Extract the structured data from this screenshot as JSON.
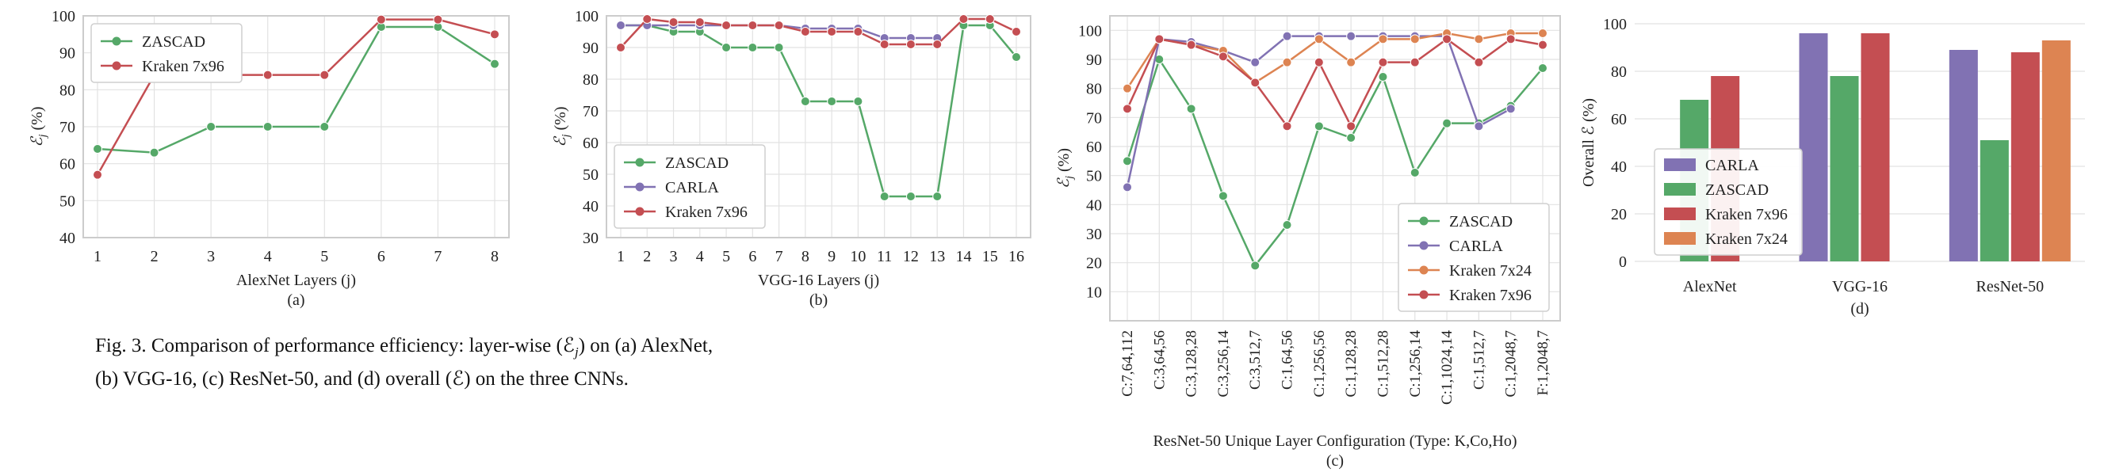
{
  "colors": {
    "zascad": "#55a868",
    "carla": "#8172b3",
    "kraken96": "#c44e52",
    "kraken24": "#dd8452",
    "grid": "#e2e2e2",
    "frame": "#cccccc"
  },
  "caption": {
    "line1": "Fig. 3.  Comparison of performance efficiency: layer-wise (ℰ",
    "line1_sub": "j",
    "line1_end": ") on (a) AlexNet,",
    "line2": "(b) VGG-16, (c) ResNet-50, and (d) overall (ℰ) on the three CNNs."
  },
  "chart_data": [
    {
      "id": "a",
      "type": "line",
      "sublabel": "(a)",
      "xlabel": "AlexNet Layers (j)",
      "ylabel": "ℰj (%)",
      "x": [
        1,
        2,
        3,
        4,
        5,
        6,
        7,
        8
      ],
      "ylim": [
        40,
        100
      ],
      "yticks": [
        40,
        50,
        60,
        70,
        80,
        90,
        100
      ],
      "grid": true,
      "legend": "top-left",
      "series": [
        {
          "name": "ZASCAD",
          "color_key": "zascad",
          "values": [
            64,
            63,
            70,
            70,
            70,
            97,
            97,
            87
          ]
        },
        {
          "name": "Kraken 7x96",
          "color_key": "kraken96",
          "values": [
            57,
            84,
            84,
            84,
            84,
            99,
            99,
            95
          ]
        }
      ]
    },
    {
      "id": "b",
      "type": "line",
      "sublabel": "(b)",
      "xlabel": "VGG-16 Layers (j)",
      "ylabel": "ℰj (%)",
      "x": [
        1,
        2,
        3,
        4,
        5,
        6,
        7,
        8,
        9,
        10,
        11,
        12,
        13,
        14,
        15,
        16
      ],
      "ylim": [
        30,
        100
      ],
      "yticks": [
        30,
        40,
        50,
        60,
        70,
        80,
        90,
        100
      ],
      "grid": true,
      "legend": "bottom-left",
      "series": [
        {
          "name": "ZASCAD",
          "color_key": "zascad",
          "values": [
            97,
            97,
            95,
            95,
            90,
            90,
            90,
            73,
            73,
            73,
            43,
            43,
            43,
            97,
            97,
            87
          ]
        },
        {
          "name": "CARLA",
          "color_key": "carla",
          "values": [
            97,
            97,
            97,
            97,
            97,
            97,
            97,
            96,
            96,
            96,
            93,
            93,
            93,
            null,
            null,
            null
          ]
        },
        {
          "name": "Kraken 7x96",
          "color_key": "kraken96",
          "values": [
            90,
            99,
            98,
            98,
            97,
            97,
            97,
            95,
            95,
            95,
            91,
            91,
            91,
            99,
            99,
            95
          ]
        }
      ]
    },
    {
      "id": "c",
      "type": "line",
      "sublabel": "(c)",
      "xlabel": "ResNet-50 Unique Layer Configuration (Type: K,Co,Ho)",
      "ylabel": "ℰj (%)",
      "categories": [
        "C:7,64,112",
        "C:3,64,56",
        "C:3,128,28",
        "C:3,256,14",
        "C:3,512,7",
        "C:1,64,56",
        "C:1,256,56",
        "C:1,128,28",
        "C:1,512,28",
        "C:1,256,14",
        "C:1,1024,14",
        "C:1,512,7",
        "C:1,2048,7",
        "F:1,2048,7"
      ],
      "ylim": [
        0,
        105
      ],
      "yticks": [
        10,
        20,
        30,
        40,
        50,
        60,
        70,
        80,
        90,
        100
      ],
      "grid": true,
      "legend": "bottom-right",
      "series": [
        {
          "name": "ZASCAD",
          "color_key": "zascad",
          "values": [
            55,
            90,
            73,
            43,
            19,
            33,
            67,
            63,
            84,
            51,
            68,
            68,
            74,
            87
          ]
        },
        {
          "name": "CARLA",
          "color_key": "carla",
          "values": [
            46,
            97,
            96,
            93,
            89,
            98,
            98,
            98,
            98,
            98,
            98,
            67,
            73,
            null
          ]
        },
        {
          "name": "Kraken 7x24",
          "color_key": "kraken24",
          "values": [
            80,
            97,
            95,
            93,
            82,
            89,
            97,
            89,
            97,
            97,
            99,
            97,
            99,
            99
          ]
        },
        {
          "name": "Kraken 7x96",
          "color_key": "kraken96",
          "values": [
            73,
            97,
            95,
            91,
            82,
            67,
            89,
            67,
            89,
            89,
            97,
            89,
            97,
            95
          ]
        }
      ]
    },
    {
      "id": "d",
      "type": "bar",
      "sublabel": "(d)",
      "xlabel": "",
      "ylabel": "Overall ℰ (%)",
      "categories": [
        "AlexNet",
        "VGG-16",
        "ResNet-50"
      ],
      "ylim": [
        0,
        100
      ],
      "yticks": [
        0,
        20,
        40,
        60,
        80,
        100
      ],
      "grid": true,
      "legend": "lower-left",
      "series": [
        {
          "name": "CARLA",
          "color_key": "carla",
          "values": [
            null,
            96,
            89
          ]
        },
        {
          "name": "ZASCAD",
          "color_key": "zascad",
          "values": [
            68,
            78,
            51
          ]
        },
        {
          "name": "Kraken 7x96",
          "color_key": "kraken96",
          "values": [
            78,
            96,
            88
          ]
        },
        {
          "name": "Kraken 7x24",
          "color_key": "kraken24",
          "values": [
            null,
            null,
            93
          ]
        }
      ]
    }
  ]
}
